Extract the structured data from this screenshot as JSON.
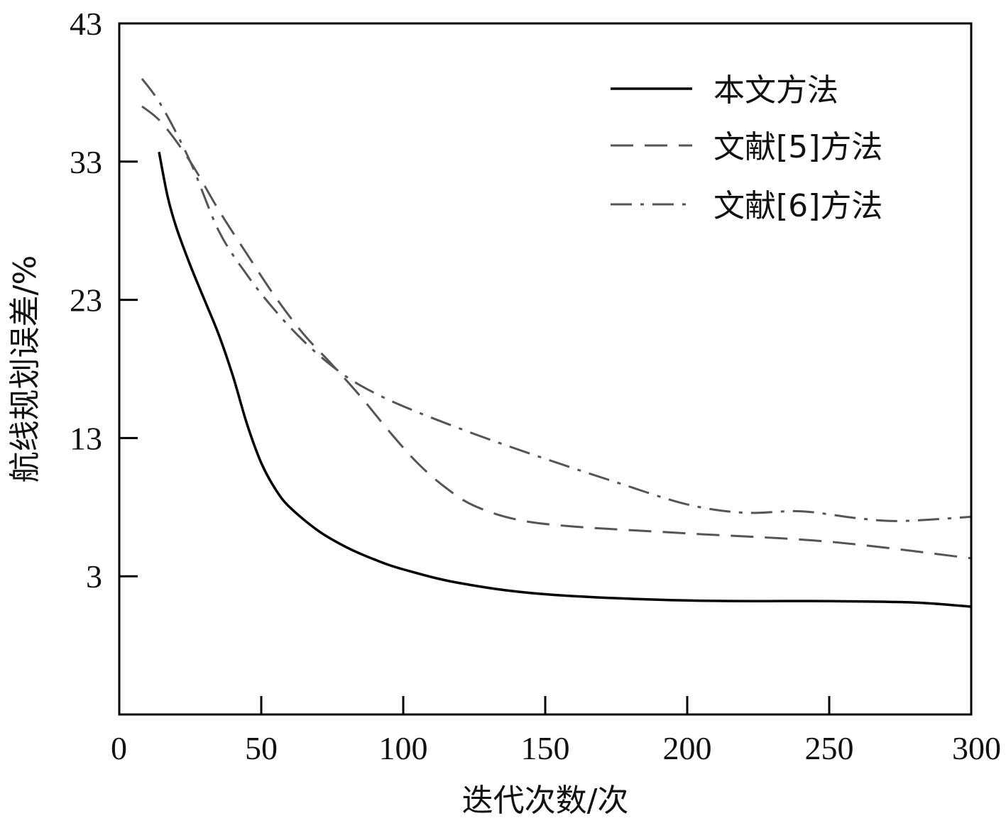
{
  "chart_data": {
    "type": "line",
    "title": "",
    "xlabel": "迭代次数/次",
    "ylabel": "航线规划误差/%",
    "xlim": [
      0,
      300
    ],
    "ylim": [
      -7,
      43
    ],
    "x_ticks": [
      0,
      50,
      100,
      150,
      200,
      250,
      300
    ],
    "y_ticks": [
      3,
      13,
      23,
      33,
      43
    ],
    "grid": false,
    "legend_position": "top-right",
    "series": [
      {
        "name": "本文方法",
        "style": "solid",
        "color": "#000000",
        "points": [
          [
            14,
            33.7
          ],
          [
            17,
            30.5
          ],
          [
            20,
            28.3
          ],
          [
            25,
            25.5
          ],
          [
            30,
            23.0
          ],
          [
            35,
            20.5
          ],
          [
            40,
            17.5
          ],
          [
            45,
            14.0
          ],
          [
            50,
            11.2
          ],
          [
            55,
            9.3
          ],
          [
            60,
            8.0
          ],
          [
            70,
            6.3
          ],
          [
            80,
            5.1
          ],
          [
            90,
            4.2
          ],
          [
            100,
            3.5
          ],
          [
            120,
            2.5
          ],
          [
            150,
            1.7
          ],
          [
            200,
            1.25
          ],
          [
            250,
            1.2
          ],
          [
            280,
            1.1
          ],
          [
            300,
            0.8
          ]
        ]
      },
      {
        "name": "文献[5]方法",
        "style": "dashed",
        "color": "#555555",
        "points": [
          [
            8,
            37.0
          ],
          [
            15,
            35.8
          ],
          [
            25,
            33.0
          ],
          [
            35,
            29.5
          ],
          [
            45,
            26.3
          ],
          [
            55,
            23.2
          ],
          [
            65,
            20.5
          ],
          [
            75,
            18.3
          ],
          [
            85,
            16.0
          ],
          [
            95,
            13.5
          ],
          [
            105,
            11.2
          ],
          [
            115,
            9.4
          ],
          [
            125,
            8.1
          ],
          [
            140,
            7.1
          ],
          [
            160,
            6.6
          ],
          [
            200,
            6.1
          ],
          [
            250,
            5.5
          ],
          [
            300,
            4.3
          ]
        ]
      },
      {
        "name": "文献[6]方法",
        "style": "dashdot",
        "color": "#555555",
        "points": [
          [
            8,
            39.0
          ],
          [
            15,
            37.0
          ],
          [
            25,
            33.0
          ],
          [
            35,
            28.0
          ],
          [
            45,
            24.8
          ],
          [
            55,
            22.2
          ],
          [
            65,
            20.0
          ],
          [
            75,
            18.2
          ],
          [
            85,
            16.8
          ],
          [
            100,
            15.3
          ],
          [
            125,
            13.3
          ],
          [
            150,
            11.5
          ],
          [
            175,
            9.8
          ],
          [
            200,
            8.2
          ],
          [
            220,
            7.6
          ],
          [
            240,
            7.7
          ],
          [
            260,
            7.2
          ],
          [
            275,
            7.0
          ],
          [
            300,
            7.3
          ]
        ]
      }
    ]
  }
}
